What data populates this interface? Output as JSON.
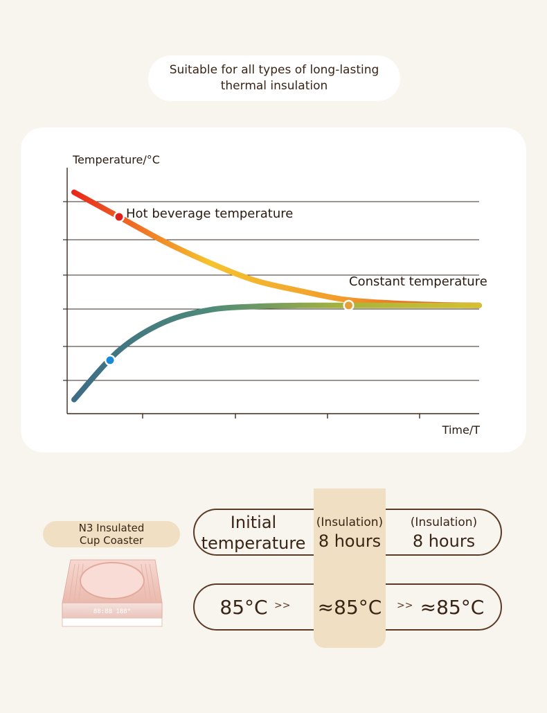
{
  "header": {
    "line1": "Suitable for all types of long-lasting",
    "line2": "thermal insulation"
  },
  "chart_data": {
    "type": "line",
    "ylabel": "Temperature/°C",
    "xlabel": "Time/T",
    "grid": true,
    "y_ticks_labeled": false,
    "x_ticks_labeled": false,
    "annotations": [
      "Hot beverage temperature",
      "Constant temperature"
    ],
    "series": [
      {
        "x": [
          0,
          0.5,
          1,
          1.5,
          2,
          2.5,
          3,
          3.5,
          4,
          4.5
        ],
        "values": [
          6.3,
          5.6,
          4.9,
          4.3,
          3.8,
          3.5,
          3.25,
          3.15,
          3.1,
          3.08
        ],
        "colors": [
          "#e8281c",
          "#f5c330",
          "#f29a2a",
          "#e83a1c"
        ]
      },
      {
        "x": [
          0,
          0.5,
          1,
          1.5,
          2,
          2.5,
          3,
          3.5,
          4,
          4.5
        ],
        "values": [
          0.4,
          1.8,
          2.6,
          2.95,
          3.05,
          3.08,
          3.08,
          3.08,
          3.08,
          3.08
        ],
        "colors": [
          "#3d6c86",
          "#4d8a7a",
          "#a8b43c",
          "#d4c030"
        ]
      }
    ],
    "markers": [
      {
        "series": 0,
        "x": 0.5,
        "color": "#e0201c"
      },
      {
        "series": 1,
        "x": 0.4,
        "color": "#1a8ad8"
      },
      {
        "series": 1,
        "x": 3.05,
        "color": "#e3a03a"
      }
    ]
  },
  "product": {
    "label_line1": "N3 Insulated",
    "label_line2": "Cup Coaster",
    "display_text": "88:88  188°"
  },
  "comparison": {
    "col1_header_line1": "Initial",
    "col1_header_line2": "temperature",
    "col2_header_line1": "(Insulation)",
    "col2_header_line2": "8 hours",
    "col3_header_line1": "(Insulation)",
    "col3_header_line2": "8 hours",
    "col1_value": "85°C",
    "col2_value": "≈85°C",
    "col3_value": "≈85°C",
    "arrow": ">>"
  }
}
